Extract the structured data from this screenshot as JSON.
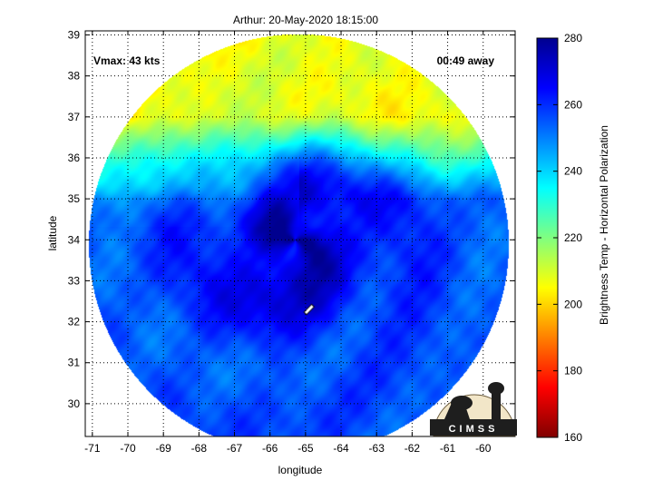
{
  "chart_data": {
    "type": "heatmap",
    "title": "Arthur: 20-May-2020 18:15:00",
    "xlabel": "longitude",
    "ylabel": "latitude",
    "xlim": [
      -71.2,
      -59.1
    ],
    "ylim": [
      29.2,
      39.1
    ],
    "x_ticks": [
      -71,
      -70,
      -69,
      -68,
      -67,
      -66,
      -65,
      -64,
      -63,
      -62,
      -61,
      -60
    ],
    "y_ticks": [
      30,
      31,
      32,
      33,
      34,
      35,
      36,
      37,
      38,
      39
    ],
    "grid": true,
    "colorbar": {
      "label": "Brightness Temp - Horizontal Polarization",
      "range": [
        160,
        280
      ],
      "ticks": [
        160,
        180,
        200,
        220,
        240,
        260,
        280
      ]
    },
    "annotations": {
      "vmax": "Vmax: 43 kts",
      "time_away": "00:49 away"
    },
    "logo_text": "CIMSS",
    "field": {
      "disc_center": [
        -65.2,
        33.9
      ],
      "disc_radius_deg": 6.0,
      "storm_center": [
        -65.3,
        34.0
      ],
      "storm_eye": [
        -64.9,
        32.3
      ],
      "outer_temp_north": 205,
      "outer_temp_south": 255,
      "core_temp": 275
    }
  },
  "colors": {
    "colormap": [
      "#800000",
      "#ff0000",
      "#ff8000",
      "#ffff00",
      "#80ff80",
      "#00ffff",
      "#0080ff",
      "#0000ff",
      "#00008f"
    ]
  }
}
